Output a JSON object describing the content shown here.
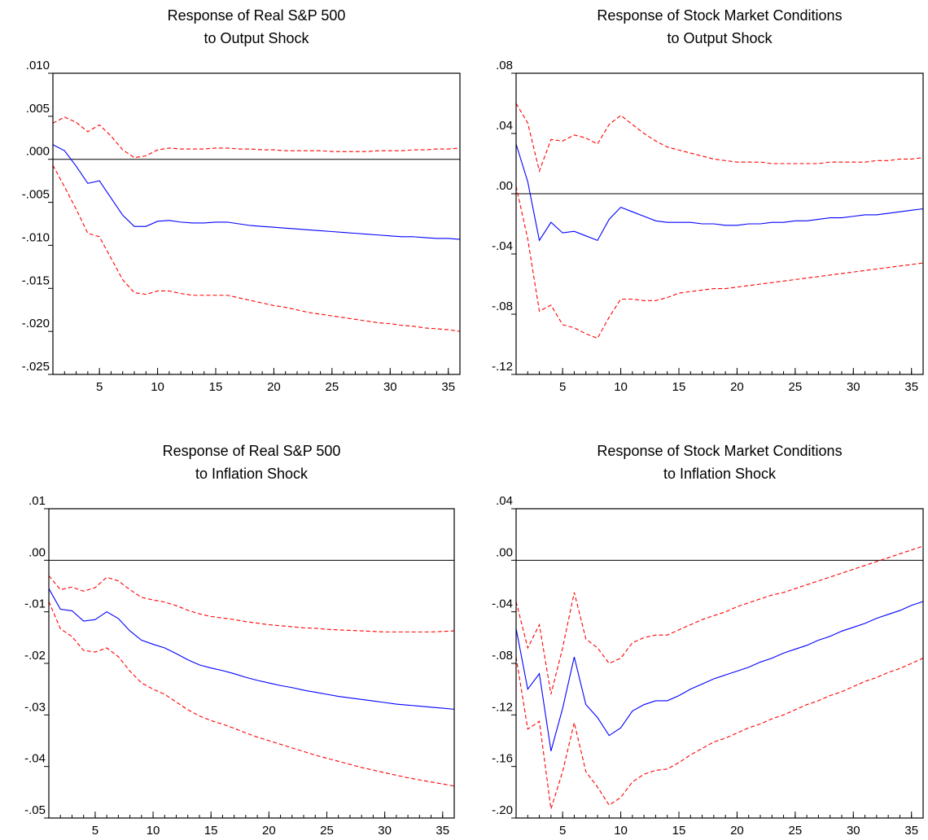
{
  "chart_data": [
    {
      "type": "line",
      "title": [
        "Response of Real S&P 500",
        "to Output Shock"
      ],
      "x": [
        1,
        2,
        3,
        4,
        5,
        6,
        7,
        8,
        9,
        10,
        11,
        12,
        13,
        14,
        15,
        16,
        17,
        18,
        19,
        20,
        21,
        22,
        23,
        24,
        25,
        26,
        27,
        28,
        29,
        30,
        31,
        32,
        33,
        34,
        35,
        36
      ],
      "xlim": [
        1,
        36
      ],
      "xticks": [
        5,
        10,
        15,
        20,
        25,
        30,
        35
      ],
      "ylim": [
        -0.025,
        0.01
      ],
      "yticks": [
        {
          "value": 0.01,
          "label": ".010"
        },
        {
          "value": 0.005,
          "label": ".005"
        },
        {
          "value": 0,
          "label": ".000"
        },
        {
          "value": -0.005,
          "label": "-.005"
        },
        {
          "value": -0.01,
          "label": "-.010"
        },
        {
          "value": -0.015,
          "label": "-.015"
        },
        {
          "value": -0.02,
          "label": "-.020"
        },
        {
          "value": -0.025,
          "label": "-.025"
        }
      ],
      "zero_line": true,
      "series": [
        {
          "color": "#0000ff",
          "dashed": false,
          "values": [
            0.0017,
            0.001,
            -0.0008,
            -0.0028,
            -0.0025,
            -0.0045,
            -0.0065,
            -0.0078,
            -0.0078,
            -0.0072,
            -0.0071,
            -0.0073,
            -0.0074,
            -0.0074,
            -0.0073,
            -0.0073,
            -0.0075,
            -0.0077,
            -0.0078,
            -0.0079,
            -0.008,
            -0.0081,
            -0.0082,
            -0.0083,
            -0.0084,
            -0.0085,
            -0.0086,
            -0.0087,
            -0.0088,
            -0.0089,
            -0.009,
            -0.009,
            -0.0091,
            -0.0092,
            -0.0092,
            -0.0093
          ]
        },
        {
          "color": "#ff0000",
          "dashed": true,
          "values": [
            0.0042,
            0.0049,
            0.0043,
            0.0032,
            0.004,
            0.0027,
            0.0011,
            0.0002,
            0.0004,
            0.0011,
            0.0013,
            0.0012,
            0.0012,
            0.0012,
            0.0013,
            0.0013,
            0.0012,
            0.0012,
            0.0011,
            0.0011,
            0.001,
            0.001,
            0.001,
            0.001,
            0.0009,
            0.0009,
            0.0009,
            0.0009,
            0.001,
            0.001,
            0.001,
            0.0011,
            0.0011,
            0.0012,
            0.0012,
            0.0013
          ]
        },
        {
          "color": "#ff0000",
          "dashed": true,
          "values": [
            -0.0007,
            -0.0032,
            -0.0058,
            -0.0086,
            -0.009,
            -0.0115,
            -0.014,
            -0.0155,
            -0.0157,
            -0.0153,
            -0.0153,
            -0.0156,
            -0.0158,
            -0.0158,
            -0.0158,
            -0.0158,
            -0.0161,
            -0.0164,
            -0.0167,
            -0.017,
            -0.0172,
            -0.0175,
            -0.0178,
            -0.018,
            -0.0182,
            -0.0184,
            -0.0186,
            -0.0188,
            -0.019,
            -0.0191,
            -0.0193,
            -0.0194,
            -0.0196,
            -0.0197,
            -0.0198,
            -0.02
          ]
        }
      ]
    },
    {
      "type": "line",
      "title": [
        "Response of Stock Market Conditions",
        "to Output Shock"
      ],
      "x": [
        1,
        2,
        3,
        4,
        5,
        6,
        7,
        8,
        9,
        10,
        11,
        12,
        13,
        14,
        15,
        16,
        17,
        18,
        19,
        20,
        21,
        22,
        23,
        24,
        25,
        26,
        27,
        28,
        29,
        30,
        31,
        32,
        33,
        34,
        35,
        36
      ],
      "xlim": [
        1,
        36
      ],
      "xticks": [
        5,
        10,
        15,
        20,
        25,
        30,
        35
      ],
      "ylim": [
        -0.12,
        0.08
      ],
      "yticks": [
        {
          "value": 0.08,
          "label": ".08"
        },
        {
          "value": 0.04,
          "label": ".04"
        },
        {
          "value": 0,
          "label": ".00"
        },
        {
          "value": -0.04,
          "label": "-.04"
        },
        {
          "value": -0.08,
          "label": "-.08"
        },
        {
          "value": -0.12,
          "label": "-.12"
        }
      ],
      "zero_line": true,
      "series": [
        {
          "color": "#0000ff",
          "dashed": false,
          "values": [
            0.033,
            0.008,
            -0.031,
            -0.019,
            -0.026,
            -0.025,
            -0.028,
            -0.031,
            -0.017,
            -0.009,
            -0.012,
            -0.015,
            -0.018,
            -0.019,
            -0.019,
            -0.019,
            -0.02,
            -0.02,
            -0.021,
            -0.021,
            -0.02,
            -0.02,
            -0.019,
            -0.019,
            -0.018,
            -0.018,
            -0.017,
            -0.016,
            -0.016,
            -0.015,
            -0.014,
            -0.014,
            -0.013,
            -0.012,
            -0.011,
            -0.01
          ]
        },
        {
          "color": "#ff0000",
          "dashed": true,
          "values": [
            0.06,
            0.047,
            0.015,
            0.036,
            0.035,
            0.039,
            0.037,
            0.033,
            0.046,
            0.052,
            0.046,
            0.04,
            0.035,
            0.031,
            0.029,
            0.027,
            0.025,
            0.023,
            0.022,
            0.021,
            0.021,
            0.021,
            0.02,
            0.02,
            0.02,
            0.02,
            0.02,
            0.021,
            0.021,
            0.021,
            0.021,
            0.022,
            0.022,
            0.023,
            0.023,
            0.024
          ]
        },
        {
          "color": "#ff0000",
          "dashed": true,
          "values": [
            0.005,
            -0.03,
            -0.078,
            -0.074,
            -0.087,
            -0.089,
            -0.093,
            -0.096,
            -0.082,
            -0.07,
            -0.07,
            -0.071,
            -0.071,
            -0.069,
            -0.066,
            -0.065,
            -0.064,
            -0.063,
            -0.063,
            -0.062,
            -0.061,
            -0.06,
            -0.059,
            -0.058,
            -0.057,
            -0.056,
            -0.055,
            -0.054,
            -0.053,
            -0.052,
            -0.051,
            -0.05,
            -0.049,
            -0.048,
            -0.047,
            -0.046
          ]
        }
      ]
    },
    {
      "type": "line",
      "title": [
        "Response of Real S&P 500",
        "to Inflation Shock"
      ],
      "x": [
        1,
        2,
        3,
        4,
        5,
        6,
        7,
        8,
        9,
        10,
        11,
        12,
        13,
        14,
        15,
        16,
        17,
        18,
        19,
        20,
        21,
        22,
        23,
        24,
        25,
        26,
        27,
        28,
        29,
        30,
        31,
        32,
        33,
        34,
        35,
        36
      ],
      "xlim": [
        1,
        36
      ],
      "xticks": [
        5,
        10,
        15,
        20,
        25,
        30,
        35
      ],
      "ylim": [
        -0.05,
        0.01
      ],
      "yticks": [
        {
          "value": 0.01,
          "label": ".01"
        },
        {
          "value": 0,
          "label": ".00"
        },
        {
          "value": -0.01,
          "label": "-.01"
        },
        {
          "value": -0.02,
          "label": "-.02"
        },
        {
          "value": -0.03,
          "label": "-.03"
        },
        {
          "value": -0.04,
          "label": "-.04"
        },
        {
          "value": -0.05,
          "label": "-.05"
        }
      ],
      "zero_line": true,
      "series": [
        {
          "color": "#0000ff",
          "dashed": false,
          "values": [
            -0.0055,
            -0.0095,
            -0.0098,
            -0.0118,
            -0.0115,
            -0.01,
            -0.0113,
            -0.0137,
            -0.0155,
            -0.0163,
            -0.017,
            -0.0181,
            -0.0193,
            -0.0203,
            -0.0209,
            -0.0214,
            -0.022,
            -0.0227,
            -0.0233,
            -0.0238,
            -0.0243,
            -0.0247,
            -0.0252,
            -0.0256,
            -0.026,
            -0.0264,
            -0.0267,
            -0.027,
            -0.0273,
            -0.0276,
            -0.0279,
            -0.0281,
            -0.0283,
            -0.0285,
            -0.0287,
            -0.0289
          ]
        },
        {
          "color": "#ff0000",
          "dashed": true,
          "values": [
            -0.003,
            -0.0057,
            -0.0052,
            -0.006,
            -0.0053,
            -0.0033,
            -0.004,
            -0.0057,
            -0.0072,
            -0.0077,
            -0.0081,
            -0.0088,
            -0.0097,
            -0.0104,
            -0.0109,
            -0.0112,
            -0.0115,
            -0.0119,
            -0.0122,
            -0.0125,
            -0.0127,
            -0.0129,
            -0.0131,
            -0.0132,
            -0.0134,
            -0.0135,
            -0.0136,
            -0.0137,
            -0.0138,
            -0.0139,
            -0.0139,
            -0.0139,
            -0.0139,
            -0.0139,
            -0.0138,
            -0.0137
          ]
        },
        {
          "color": "#ff0000",
          "dashed": true,
          "values": [
            -0.008,
            -0.0133,
            -0.0148,
            -0.0175,
            -0.0178,
            -0.017,
            -0.0187,
            -0.0215,
            -0.0238,
            -0.025,
            -0.026,
            -0.0275,
            -0.029,
            -0.0302,
            -0.0311,
            -0.0318,
            -0.0326,
            -0.0335,
            -0.0343,
            -0.035,
            -0.0357,
            -0.0364,
            -0.0371,
            -0.0378,
            -0.0384,
            -0.039,
            -0.0396,
            -0.0402,
            -0.0407,
            -0.0412,
            -0.0417,
            -0.0422,
            -0.0426,
            -0.043,
            -0.0434,
            -0.0438
          ]
        }
      ]
    },
    {
      "type": "line",
      "title": [
        "Response of Stock Market Conditions",
        "to Inflation Shock"
      ],
      "x": [
        1,
        2,
        3,
        4,
        5,
        6,
        7,
        8,
        9,
        10,
        11,
        12,
        13,
        14,
        15,
        16,
        17,
        18,
        19,
        20,
        21,
        22,
        23,
        24,
        25,
        26,
        27,
        28,
        29,
        30,
        31,
        32,
        33,
        34,
        35,
        36
      ],
      "xlim": [
        1,
        36
      ],
      "xticks": [
        5,
        10,
        15,
        20,
        25,
        30,
        35
      ],
      "ylim": [
        -0.2,
        0.04
      ],
      "yticks": [
        {
          "value": 0.04,
          "label": ".04"
        },
        {
          "value": 0,
          "label": ".00"
        },
        {
          "value": -0.04,
          "label": "-.04"
        },
        {
          "value": -0.08,
          "label": "-.08"
        },
        {
          "value": -0.12,
          "label": "-.12"
        },
        {
          "value": -0.16,
          "label": "-.16"
        },
        {
          "value": -0.2,
          "label": "-.20"
        }
      ],
      "zero_line": true,
      "series": [
        {
          "color": "#0000ff",
          "dashed": false,
          "values": [
            -0.053,
            -0.1,
            -0.088,
            -0.148,
            -0.115,
            -0.075,
            -0.112,
            -0.122,
            -0.136,
            -0.13,
            -0.117,
            -0.112,
            -0.109,
            -0.109,
            -0.105,
            -0.1,
            -0.096,
            -0.092,
            -0.089,
            -0.086,
            -0.083,
            -0.079,
            -0.076,
            -0.072,
            -0.069,
            -0.066,
            -0.062,
            -0.059,
            -0.055,
            -0.052,
            -0.049,
            -0.045,
            -0.042,
            -0.039,
            -0.035,
            -0.032
          ]
        },
        {
          "color": "#ff0000",
          "dashed": true,
          "values": [
            -0.032,
            -0.068,
            -0.05,
            -0.104,
            -0.068,
            -0.025,
            -0.061,
            -0.068,
            -0.08,
            -0.076,
            -0.064,
            -0.06,
            -0.058,
            -0.058,
            -0.054,
            -0.05,
            -0.046,
            -0.043,
            -0.04,
            -0.036,
            -0.033,
            -0.03,
            -0.027,
            -0.025,
            -0.022,
            -0.019,
            -0.016,
            -0.013,
            -0.01,
            -0.007,
            -0.004,
            -0.001,
            0.002,
            0.005,
            0.008,
            0.011
          ]
        },
        {
          "color": "#ff0000",
          "dashed": true,
          "values": [
            -0.075,
            -0.131,
            -0.125,
            -0.193,
            -0.164,
            -0.126,
            -0.164,
            -0.176,
            -0.19,
            -0.184,
            -0.172,
            -0.166,
            -0.163,
            -0.162,
            -0.157,
            -0.151,
            -0.146,
            -0.141,
            -0.138,
            -0.134,
            -0.13,
            -0.127,
            -0.123,
            -0.12,
            -0.116,
            -0.112,
            -0.109,
            -0.105,
            -0.102,
            -0.098,
            -0.094,
            -0.091,
            -0.087,
            -0.084,
            -0.08,
            -0.076
          ]
        }
      ]
    }
  ]
}
